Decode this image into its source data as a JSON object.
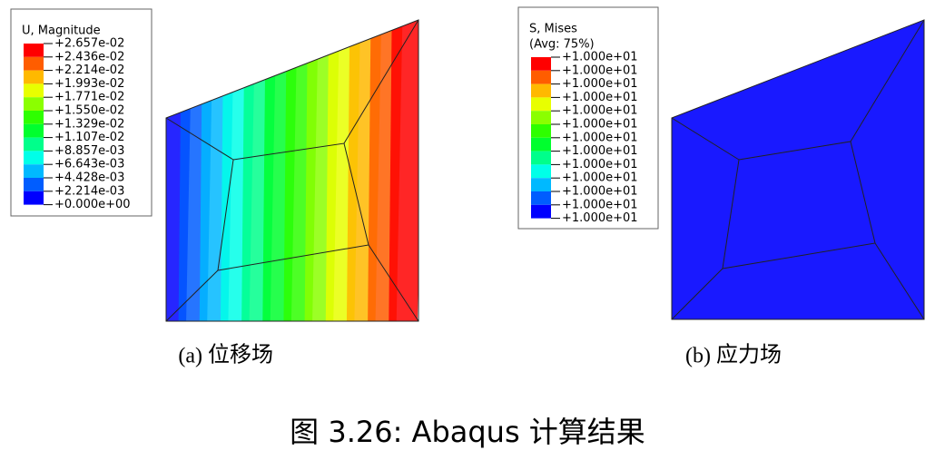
{
  "panels": [
    {
      "legend": {
        "title": [
          "U, Magnitude"
        ],
        "labels": [
          "+2.657e-02",
          "+2.436e-02",
          "+2.214e-02",
          "+1.993e-02",
          "+1.771e-02",
          "+1.550e-02",
          "+1.329e-02",
          "+1.107e-02",
          "+8.857e-03",
          "+6.643e-03",
          "+4.428e-03",
          "+2.214e-03",
          "+0.000e+00"
        ],
        "colors": [
          "#ff0000",
          "#ff5d00",
          "#ffb900",
          "#e8ff00",
          "#8bff00",
          "#2eff00",
          "#00ff2e",
          "#00ff8b",
          "#00ffe8",
          "#00b9ff",
          "#005dff",
          "#0000ff"
        ]
      },
      "field": "contour",
      "caption_label": "(a)",
      "caption": "位移场"
    },
    {
      "legend": {
        "title": [
          "S, Mises",
          "(Avg: 75%)"
        ],
        "labels": [
          "+1.000e+01",
          "+1.000e+01",
          "+1.000e+01",
          "+1.000e+01",
          "+1.000e+01",
          "+1.000e+01",
          "+1.000e+01",
          "+1.000e+01",
          "+1.000e+01",
          "+1.000e+01",
          "+1.000e+01",
          "+1.000e+01",
          "+1.000e+01"
        ],
        "colors": [
          "#ff0000",
          "#ff5d00",
          "#ffb900",
          "#e8ff00",
          "#8bff00",
          "#2eff00",
          "#00ff2e",
          "#00ff8b",
          "#00ffe8",
          "#00b9ff",
          "#005dff",
          "#0000ff"
        ]
      },
      "field": "uniform",
      "caption_label": "(b)",
      "caption": "应力场"
    }
  ],
  "figure_caption": "图 3.26: Abaqus 计算结果"
}
